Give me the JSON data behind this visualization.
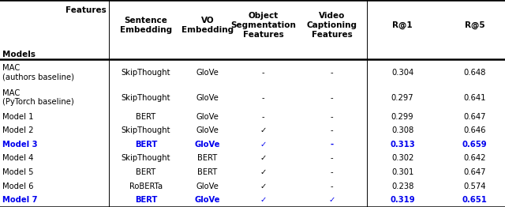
{
  "rows": [
    {
      "model": "MAC\n(authors baseline)",
      "sentence_emb": "SkipThought",
      "vo_emb": "GloVe",
      "obj_seg": "-",
      "vid_cap": "-",
      "r1": "0.304",
      "r5": "0.648",
      "highlight": false
    },
    {
      "model": "MAC\n(PyTorch baseline)",
      "sentence_emb": "SkipThought",
      "vo_emb": "GloVe",
      "obj_seg": "-",
      "vid_cap": "-",
      "r1": "0.297",
      "r5": "0.641",
      "highlight": false
    },
    {
      "model": "Model 1",
      "sentence_emb": "BERT",
      "vo_emb": "GloVe",
      "obj_seg": "-",
      "vid_cap": "-",
      "r1": "0.299",
      "r5": "0.647",
      "highlight": false
    },
    {
      "model": "Model 2",
      "sentence_emb": "SkipThought",
      "vo_emb": "GloVe",
      "obj_seg": "✓",
      "vid_cap": "-",
      "r1": "0.308",
      "r5": "0.646",
      "highlight": false
    },
    {
      "model": "Model 3",
      "sentence_emb": "BERT",
      "vo_emb": "GloVe",
      "obj_seg": "✓",
      "vid_cap": "-",
      "r1": "0.313",
      "r5": "0.659",
      "highlight": true
    },
    {
      "model": "Model 4",
      "sentence_emb": "SkipThought",
      "vo_emb": "BERT",
      "obj_seg": "✓",
      "vid_cap": "-",
      "r1": "0.302",
      "r5": "0.642",
      "highlight": false
    },
    {
      "model": "Model 5",
      "sentence_emb": "BERT",
      "vo_emb": "BERT",
      "obj_seg": "✓",
      "vid_cap": "-",
      "r1": "0.301",
      "r5": "0.647",
      "highlight": false
    },
    {
      "model": "Model 6",
      "sentence_emb": "RoBERTa",
      "vo_emb": "GloVe",
      "obj_seg": "✓",
      "vid_cap": "-",
      "r1": "0.238",
      "r5": "0.574",
      "highlight": false
    },
    {
      "model": "Model 7",
      "sentence_emb": "BERT",
      "vo_emb": "GloVe",
      "obj_seg": "✓",
      "vid_cap": "✓",
      "r1": "0.319",
      "r5": "0.651",
      "highlight": true
    }
  ],
  "highlight_color": "#0000EE",
  "normal_color": "#000000",
  "background_color": "#FFFFFF",
  "border_color": "#000000",
  "col_headers": [
    "Sentence\nEmbedding",
    "VO\nEmbedding",
    "Object\nSegmentation\nFeatures",
    "Video\nCaptioning\nFeatures",
    "R@1",
    "R@5"
  ],
  "header_features": "Features",
  "header_models": "Models",
  "figsize": [
    6.4,
    2.62
  ],
  "dpi": 100
}
